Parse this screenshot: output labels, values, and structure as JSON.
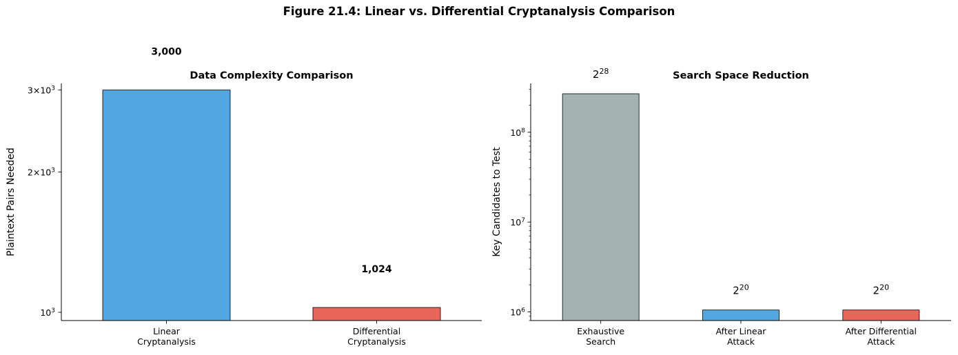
{
  "figure_title": "Figure 21.4: Linear vs. Differential Cryptanalysis Comparison",
  "colors": {
    "linear": "#52a7e0",
    "differential": "#e8665a",
    "exhaustive": "#a4b2b2",
    "edge": "#000000"
  },
  "chart_data": [
    {
      "type": "bar",
      "title": "Data Complexity Comparison",
      "xlabel": "",
      "ylabel": "Plaintext Pairs Needed",
      "yscale": "log",
      "ylim": [
        960,
        3100
      ],
      "categories": [
        "Linear\nCryptanalysis",
        "Differential\nCryptanalysis"
      ],
      "values": [
        3000,
        1024
      ],
      "data_labels": [
        "3,000",
        "1,024"
      ],
      "colors": [
        "#52a7e0",
        "#e8665a"
      ],
      "major_ticks": [
        1000,
        2000,
        3000
      ],
      "tick_labels": [
        "10^3",
        "2×10^3",
        "3×10^3"
      ],
      "grid": false
    },
    {
      "type": "bar",
      "title": "Search Space Reduction",
      "xlabel": "",
      "ylabel": "Key Candidates to Test",
      "yscale": "log",
      "ylim": [
        800000,
        350000000
      ],
      "categories": [
        "Exhaustive\nSearch",
        "After Linear\nAttack",
        "After Differential\nAttack"
      ],
      "values": [
        268435456,
        1048576,
        1048576
      ],
      "data_labels": [
        {
          "base": "2",
          "exp": "28"
        },
        {
          "base": "2",
          "exp": "20"
        },
        {
          "base": "2",
          "exp": "20"
        }
      ],
      "colors": [
        "#a4b2b2",
        "#52a7e0",
        "#e8665a"
      ],
      "major_ticks": [
        1000000,
        10000000,
        100000000
      ],
      "tick_labels": [
        "10^6",
        "10^7",
        "10^8"
      ],
      "grid": false
    }
  ]
}
